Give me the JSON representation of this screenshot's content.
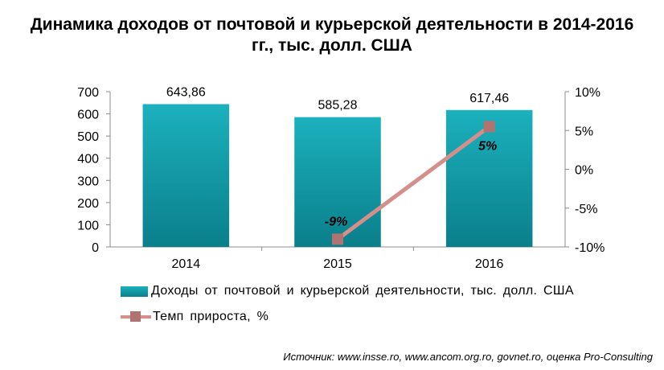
{
  "title": {
    "line1": "Динамика доходов от почтовой и курьерской деятельности в 2014-2016",
    "line2": "гг., тыс. долл. США"
  },
  "chart_data": {
    "type": "bar",
    "categories": [
      "2014",
      "2015",
      "2016"
    ],
    "series": [
      {
        "name": "Доходы от почтовой и курьерской деятельности, тыс. долл. США",
        "type": "bar",
        "axis": "left",
        "values": [
          643.86,
          585.28,
          617.46
        ],
        "data_labels": [
          "643,86",
          "585,28",
          "617,46"
        ],
        "color": "#0f96a3"
      },
      {
        "name": "Темп прироста, %",
        "type": "line",
        "axis": "right",
        "values": [
          null,
          -9,
          5.5
        ],
        "data_labels": [
          "",
          "-9%",
          "5%"
        ],
        "color": "#d48f8b",
        "marker_color": "#b07371"
      }
    ],
    "y_left": {
      "ylim": [
        0,
        700
      ],
      "ticks": [
        "0",
        "100",
        "200",
        "300",
        "400",
        "500",
        "600",
        "700"
      ]
    },
    "y_right": {
      "ylim": [
        -10,
        10
      ],
      "ticks": [
        "-10%",
        "-5%",
        "0%",
        "5%",
        "10%"
      ]
    },
    "grid": false,
    "legend_position": "bottom"
  },
  "legend": {
    "bar_label": "Доходы от почтовой и курьерской деятельности, тыс. долл. США",
    "line_label": "Темп прироста, %"
  },
  "source": "Источник: www.insse.ro, www.ancom.org.ro, govnet.ro, оценка Pro-Consulting"
}
